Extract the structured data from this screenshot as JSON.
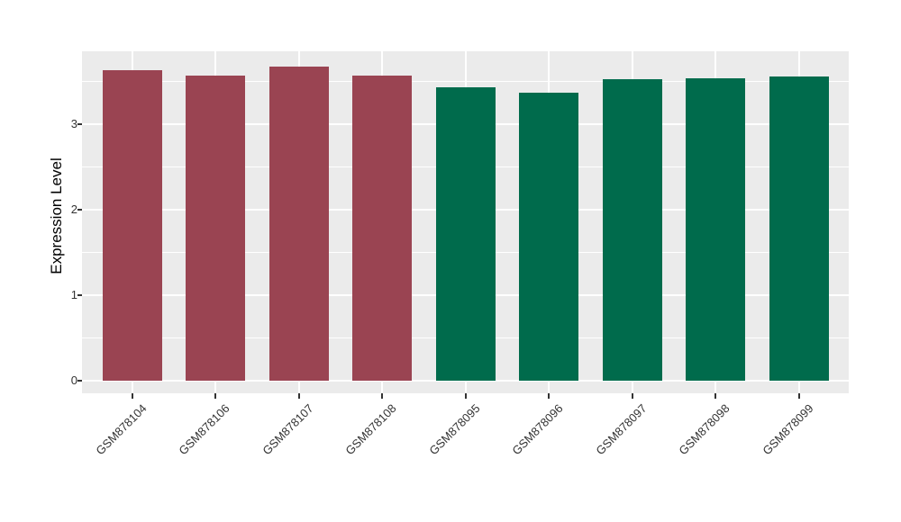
{
  "figure": {
    "background_color": "#FFFFFF"
  },
  "chart_data": {
    "type": "bar",
    "title": "",
    "xlabel": "",
    "ylabel": "Expression Level",
    "categories": [
      "GSM878104",
      "GSM878106",
      "GSM878107",
      "GSM878108",
      "GSM878095",
      "GSM878096",
      "GSM878097",
      "GSM878098",
      "GSM878099"
    ],
    "values": [
      3.63,
      3.57,
      3.67,
      3.57,
      3.43,
      3.37,
      3.53,
      3.54,
      3.56
    ],
    "bar_colors": [
      "#9A4452",
      "#9A4452",
      "#9A4452",
      "#9A4452",
      "#006B4C",
      "#006B4C",
      "#006B4C",
      "#006B4C",
      "#006B4C"
    ],
    "group_colors": {
      "red_group": "#9A4452",
      "green_group": "#006B4C"
    },
    "ytick_labels": [
      "0",
      "1",
      "2",
      "3"
    ],
    "yticks_major": [
      0,
      1,
      2,
      3
    ],
    "yticks_minor": [
      0.5,
      1.5,
      2.5,
      3.5
    ],
    "ylim": [
      0,
      3.85
    ],
    "x_labels_rotation_deg": 45,
    "grid": "on",
    "legend": "none",
    "panel_background": "#EBEBEB",
    "gridline_color": "#FFFFFF",
    "tick_color": "#333333",
    "axis_title_color": "#000000"
  }
}
